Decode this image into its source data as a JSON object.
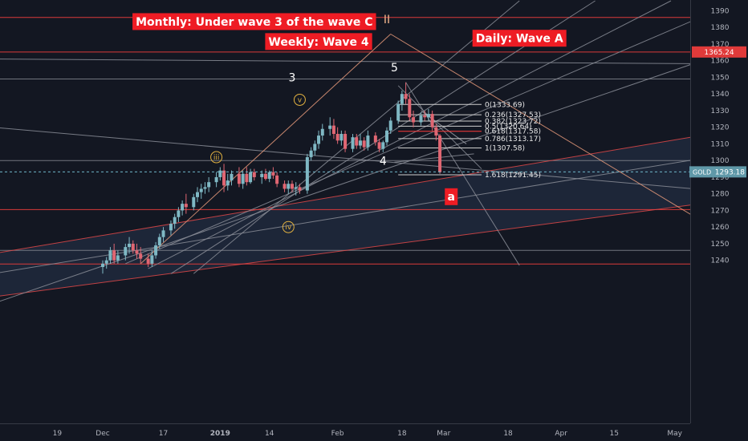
{
  "chart_data": {
    "type": "candlestick",
    "symbol": "GOLD",
    "last_price": "1293.18",
    "marked_level": "1365.24",
    "ylim": [
      1237,
      1396
    ],
    "y_ticks": [
      1240,
      1250,
      1260,
      1270,
      1280,
      1290,
      1300,
      1310,
      1320,
      1330,
      1340,
      1350,
      1360,
      1370,
      1380,
      1390
    ],
    "x_ticks": [
      {
        "label": "19",
        "d": -12
      },
      {
        "label": "Dec",
        "d": 0
      },
      {
        "label": "17",
        "d": 16
      },
      {
        "label": "2019",
        "d": 31
      },
      {
        "label": "14",
        "d": 44
      },
      {
        "label": "Feb",
        "d": 62
      },
      {
        "label": "18",
        "d": 79
      },
      {
        "label": "Mar",
        "d": 90
      },
      {
        "label": "18",
        "d": 107
      },
      {
        "label": "Apr",
        "d": 121
      },
      {
        "label": "15",
        "d": 135
      },
      {
        "label": "May",
        "d": 151
      }
    ],
    "candles": [
      {
        "d": 0,
        "o": 1236,
        "h": 1240,
        "l": 1232,
        "c": 1238
      },
      {
        "d": 1,
        "o": 1238,
        "h": 1242,
        "l": 1235,
        "c": 1240
      },
      {
        "d": 2,
        "o": 1240,
        "h": 1248,
        "l": 1238,
        "c": 1246
      },
      {
        "d": 3,
        "o": 1246,
        "h": 1250,
        "l": 1238,
        "c": 1240
      },
      {
        "d": 4,
        "o": 1240,
        "h": 1246,
        "l": 1238,
        "c": 1243
      },
      {
        "d": 6,
        "o": 1243,
        "h": 1250,
        "l": 1240,
        "c": 1248
      },
      {
        "d": 7,
        "o": 1248,
        "h": 1254,
        "l": 1244,
        "c": 1250
      },
      {
        "d": 8,
        "o": 1250,
        "h": 1252,
        "l": 1244,
        "c": 1246
      },
      {
        "d": 9,
        "o": 1246,
        "h": 1250,
        "l": 1241,
        "c": 1244
      },
      {
        "d": 10,
        "o": 1244,
        "h": 1248,
        "l": 1238,
        "c": 1241
      },
      {
        "d": 12,
        "o": 1241,
        "h": 1244,
        "l": 1236,
        "c": 1238
      },
      {
        "d": 13,
        "o": 1238,
        "h": 1246,
        "l": 1236,
        "c": 1243
      },
      {
        "d": 14,
        "o": 1243,
        "h": 1251,
        "l": 1241,
        "c": 1249
      },
      {
        "d": 15,
        "o": 1249,
        "h": 1256,
        "l": 1247,
        "c": 1254
      },
      {
        "d": 16,
        "o": 1254,
        "h": 1260,
        "l": 1251,
        "c": 1258
      },
      {
        "d": 18,
        "o": 1258,
        "h": 1264,
        "l": 1255,
        "c": 1262
      },
      {
        "d": 19,
        "o": 1262,
        "h": 1268,
        "l": 1259,
        "c": 1266
      },
      {
        "d": 20,
        "o": 1266,
        "h": 1272,
        "l": 1263,
        "c": 1270
      },
      {
        "d": 21,
        "o": 1270,
        "h": 1276,
        "l": 1267,
        "c": 1274
      },
      {
        "d": 22,
        "o": 1274,
        "h": 1280,
        "l": 1268,
        "c": 1272
      },
      {
        "d": 24,
        "o": 1272,
        "h": 1280,
        "l": 1270,
        "c": 1278
      },
      {
        "d": 25,
        "o": 1278,
        "h": 1284,
        "l": 1275,
        "c": 1281
      },
      {
        "d": 26,
        "o": 1281,
        "h": 1286,
        "l": 1277,
        "c": 1283
      },
      {
        "d": 27,
        "o": 1283,
        "h": 1287,
        "l": 1280,
        "c": 1284
      },
      {
        "d": 28,
        "o": 1284,
        "h": 1290,
        "l": 1281,
        "c": 1287
      },
      {
        "d": 30,
        "o": 1287,
        "h": 1293,
        "l": 1284,
        "c": 1290
      },
      {
        "d": 31,
        "o": 1290,
        "h": 1296,
        "l": 1288,
        "c": 1294
      },
      {
        "d": 32,
        "o": 1294,
        "h": 1298,
        "l": 1281,
        "c": 1285
      },
      {
        "d": 33,
        "o": 1285,
        "h": 1292,
        "l": 1282,
        "c": 1288
      },
      {
        "d": 34,
        "o": 1288,
        "h": 1294,
        "l": 1285,
        "c": 1292
      },
      {
        "d": 36,
        "o": 1292,
        "h": 1296,
        "l": 1284,
        "c": 1286
      },
      {
        "d": 37,
        "o": 1286,
        "h": 1294,
        "l": 1283,
        "c": 1292
      },
      {
        "d": 38,
        "o": 1292,
        "h": 1296,
        "l": 1285,
        "c": 1287
      },
      {
        "d": 39,
        "o": 1287,
        "h": 1295,
        "l": 1286,
        "c": 1293
      },
      {
        "d": 40,
        "o": 1293,
        "h": 1295,
        "l": 1288,
        "c": 1290
      },
      {
        "d": 42,
        "o": 1290,
        "h": 1294,
        "l": 1286,
        "c": 1292
      },
      {
        "d": 43,
        "o": 1292,
        "h": 1295,
        "l": 1288,
        "c": 1289
      },
      {
        "d": 44,
        "o": 1289,
        "h": 1294,
        "l": 1287,
        "c": 1293
      },
      {
        "d": 45,
        "o": 1293,
        "h": 1296,
        "l": 1289,
        "c": 1291
      },
      {
        "d": 46,
        "o": 1291,
        "h": 1293,
        "l": 1284,
        "c": 1286
      },
      {
        "d": 48,
        "o": 1286,
        "h": 1288,
        "l": 1281,
        "c": 1283
      },
      {
        "d": 49,
        "o": 1283,
        "h": 1288,
        "l": 1280,
        "c": 1286
      },
      {
        "d": 50,
        "o": 1286,
        "h": 1288,
        "l": 1281,
        "c": 1283
      },
      {
        "d": 51,
        "o": 1283,
        "h": 1287,
        "l": 1279,
        "c": 1284
      },
      {
        "d": 52,
        "o": 1284,
        "h": 1286,
        "l": 1280,
        "c": 1282
      },
      {
        "d": 54,
        "o": 1282,
        "h": 1304,
        "l": 1280,
        "c": 1302
      },
      {
        "d": 55,
        "o": 1302,
        "h": 1308,
        "l": 1300,
        "c": 1306
      },
      {
        "d": 56,
        "o": 1306,
        "h": 1312,
        "l": 1303,
        "c": 1310
      },
      {
        "d": 57,
        "o": 1310,
        "h": 1318,
        "l": 1307,
        "c": 1315
      },
      {
        "d": 58,
        "o": 1315,
        "h": 1322,
        "l": 1312,
        "c": 1319
      },
      {
        "d": 60,
        "o": 1319,
        "h": 1326,
        "l": 1315,
        "c": 1321
      },
      {
        "d": 61,
        "o": 1321,
        "h": 1325,
        "l": 1313,
        "c": 1316
      },
      {
        "d": 62,
        "o": 1316,
        "h": 1320,
        "l": 1310,
        "c": 1312
      },
      {
        "d": 63,
        "o": 1312,
        "h": 1318,
        "l": 1309,
        "c": 1316
      },
      {
        "d": 64,
        "o": 1316,
        "h": 1318,
        "l": 1305,
        "c": 1307
      },
      {
        "d": 66,
        "o": 1307,
        "h": 1316,
        "l": 1305,
        "c": 1314
      },
      {
        "d": 67,
        "o": 1314,
        "h": 1316,
        "l": 1307,
        "c": 1309
      },
      {
        "d": 68,
        "o": 1309,
        "h": 1316,
        "l": 1307,
        "c": 1312
      },
      {
        "d": 69,
        "o": 1312,
        "h": 1314,
        "l": 1306,
        "c": 1308
      },
      {
        "d": 70,
        "o": 1308,
        "h": 1318,
        "l": 1306,
        "c": 1315
      },
      {
        "d": 72,
        "o": 1315,
        "h": 1317,
        "l": 1309,
        "c": 1311
      },
      {
        "d": 73,
        "o": 1311,
        "h": 1313,
        "l": 1305,
        "c": 1307
      },
      {
        "d": 74,
        "o": 1307,
        "h": 1312,
        "l": 1305,
        "c": 1311
      },
      {
        "d": 75,
        "o": 1311,
        "h": 1320,
        "l": 1309,
        "c": 1318
      },
      {
        "d": 76,
        "o": 1318,
        "h": 1326,
        "l": 1316,
        "c": 1324
      },
      {
        "d": 78,
        "o": 1324,
        "h": 1336,
        "l": 1322,
        "c": 1334
      },
      {
        "d": 79,
        "o": 1334,
        "h": 1342,
        "l": 1330,
        "c": 1340
      },
      {
        "d": 80,
        "o": 1340,
        "h": 1347,
        "l": 1334,
        "c": 1337
      },
      {
        "d": 81,
        "o": 1337,
        "h": 1340,
        "l": 1324,
        "c": 1326
      },
      {
        "d": 82,
        "o": 1326,
        "h": 1330,
        "l": 1320,
        "c": 1323
      },
      {
        "d": 84,
        "o": 1323,
        "h": 1329,
        "l": 1321,
        "c": 1327
      },
      {
        "d": 85,
        "o": 1327,
        "h": 1330,
        "l": 1324,
        "c": 1326
      },
      {
        "d": 86,
        "o": 1326,
        "h": 1331,
        "l": 1324,
        "c": 1328
      },
      {
        "d": 87,
        "o": 1328,
        "h": 1330,
        "l": 1318,
        "c": 1320
      },
      {
        "d": 88,
        "o": 1320,
        "h": 1322,
        "l": 1312,
        "c": 1315
      },
      {
        "d": 89,
        "o": 1315,
        "h": 1316,
        "l": 1292,
        "c": 1293
      }
    ],
    "fib_levels": [
      {
        "label": "0(1333.69)",
        "value": 1333.69,
        "color": "#cfcfcf"
      },
      {
        "label": "0.236(1327.53)",
        "value": 1327.53,
        "color": "#cfcfcf"
      },
      {
        "label": "0.382(1323.72)",
        "value": 1323.72,
        "color": "#cfcfcf"
      },
      {
        "label": "0.5(1320.64)",
        "value": 1320.64,
        "color": "#cfcfcf"
      },
      {
        "label": "0.618(1317.58)",
        "value": 1317.58,
        "color": "#ff3b3b"
      },
      {
        "label": "0.786(1313.17)",
        "value": 1313.17,
        "color": "#cfcfcf"
      },
      {
        "label": "1(1307.58)",
        "value": 1307.58,
        "color": "#cfcfcf"
      },
      {
        "label": "1.618(1291.45)",
        "value": 1291.45,
        "color": "#cfcfcf"
      }
    ],
    "red_levels": [
      1386,
      1365.24,
      1270.5,
      1237.8
    ],
    "gray_levels": [
      1349,
      1300,
      1246
    ],
    "trend_lines": [
      {
        "points": [
          [
            -29,
            1361
          ],
          [
            171,
            1358
          ]
        ],
        "color": "#8a8d96"
      },
      {
        "points": [
          [
            -29,
            1320
          ],
          [
            171,
            1280
          ]
        ],
        "color": "#8a8d96"
      },
      {
        "points": [
          [
            -29,
            1244
          ],
          [
            171,
            1320
          ]
        ],
        "color": "#e04848"
      },
      {
        "points": [
          [
            -29,
            1218
          ],
          [
            171,
            1278
          ]
        ],
        "color": "#e04848"
      },
      {
        "points": [
          [
            -29,
            1232
          ],
          [
            171,
            1306
          ]
        ],
        "color": "#8a8d96"
      },
      {
        "points": [
          [
            -29,
            1214
          ],
          [
            171,
            1370
          ]
        ],
        "color": "#8a8d96"
      },
      {
        "points": [
          [
            6,
            1238
          ],
          [
            168,
            1396
          ]
        ],
        "color": "#8a8d96"
      },
      {
        "points": [
          [
            12,
            1235
          ],
          [
            150,
            1396
          ]
        ],
        "color": "#8a8d96"
      },
      {
        "points": [
          [
            18,
            1232
          ],
          [
            130,
            1396
          ]
        ],
        "color": "#8a8d96"
      },
      {
        "points": [
          [
            24,
            1232
          ],
          [
            110,
            1396
          ]
        ],
        "color": "#8a8d96"
      },
      {
        "points": [
          [
            10,
            1238
          ],
          [
            76,
            1376
          ]
        ],
        "color": "#e89a7a"
      },
      {
        "points": [
          [
            76,
            1376
          ],
          [
            171,
            1246
          ]
        ],
        "color": "#e89a7a"
      },
      {
        "points": [
          [
            80,
            1347
          ],
          [
            110,
            1237
          ]
        ],
        "color": "#8a8d96"
      },
      {
        "points": [
          [
            78,
            1345
          ],
          [
            100,
            1295
          ]
        ],
        "color": "#8a8d96"
      },
      {
        "points": [
          [
            77,
            1299
          ],
          [
            98,
            1304
          ]
        ],
        "color": "#8a8d96"
      },
      {
        "points": [
          [
            84,
            1330
          ],
          [
            96,
            1310
          ]
        ],
        "color": "#9a9da6"
      }
    ],
    "labels": [
      {
        "text": "Monthly: Under wave 3 of the wave C",
        "d": 40,
        "v": 1383.5
      },
      {
        "text": "Weekly: Wave 4",
        "d": 57,
        "v": 1371.5
      },
      {
        "text": "Daily: Wave A",
        "d": 110,
        "v": 1373.5
      }
    ],
    "wave_labels": [
      {
        "text": "II",
        "d": 75,
        "v": 1382.5,
        "color": "#f3b58c"
      },
      {
        "text": "5",
        "d": 77,
        "v": 1353.5,
        "color": "#ffffff"
      },
      {
        "text": "3",
        "d": 50,
        "v": 1347.5,
        "color": "#ffffff"
      },
      {
        "text": "4",
        "d": 74,
        "v": 1297.5,
        "color": "#ffffff"
      }
    ],
    "circle_labels": [
      {
        "text": "v",
        "d": 52,
        "v": 1336.5
      },
      {
        "text": "iii",
        "d": 30,
        "v": 1302
      },
      {
        "text": "iv",
        "d": 49,
        "v": 1260
      }
    ],
    "box_label": {
      "text": "a",
      "d": 92,
      "v": 1278.5
    }
  }
}
